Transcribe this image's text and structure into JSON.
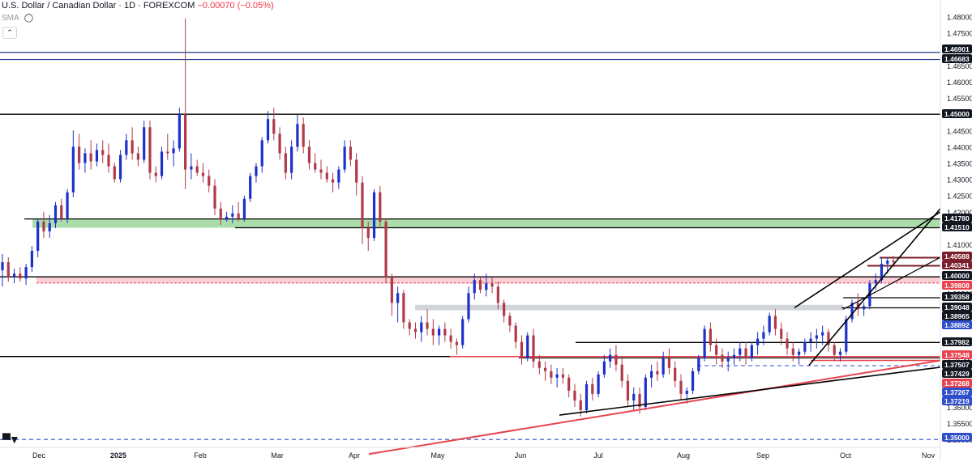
{
  "header": {
    "symbol_title": "U.S. Dollar / Canadian Dollar · 1D · FOREXCOM",
    "change": "−0.00070 (−0.05%)",
    "indicator": "SMA",
    "collapse_icon": "chevron-up-icon",
    "visibility_icon": "eye-slash-icon"
  },
  "watermark": {
    "logo": "TV"
  },
  "colors": {
    "up": "#1c31c9",
    "down": "#b03a49",
    "support_zone": "#8fd18f",
    "parity_zone": "#f7c2c9",
    "grey_zone": "#c9ccd1",
    "trendline_red": "#e8434f",
    "hline_blue": "#1e3a8a",
    "label_dark": "#131722",
    "label_blue": "#2f4ec9",
    "label_red": "#e8434f",
    "label_maroon": "#7a1f2b"
  },
  "chart_data": {
    "type": "candlestick",
    "symbol": "USDCAD",
    "interval": "1D",
    "y_axis_ticks": [
      "1.48000",
      "1.47500",
      "1.47000",
      "1.46500",
      "1.46000",
      "1.45500",
      "1.45000",
      "1.44500",
      "1.44000",
      "1.43500",
      "1.43000",
      "1.42500",
      "1.42000",
      "1.41500",
      "1.41000",
      "1.40500",
      "1.40000",
      "1.39500",
      "1.39000",
      "1.38500",
      "1.38000",
      "1.37500",
      "1.37000",
      "1.36500",
      "1.36000",
      "1.35500",
      "1.35000"
    ],
    "ylim": [
      1.3443,
      1.4822
    ],
    "x_axis_labels": [
      "Dec",
      "2025",
      "Feb",
      "Mar",
      "Apr",
      "May",
      "Jun",
      "Jul",
      "Aug",
      "Sep",
      "Oct",
      "Nov"
    ],
    "price_labels": [
      {
        "text": "1.46901",
        "style": "dark"
      },
      {
        "text": "1.46683",
        "style": "dark"
      },
      {
        "text": "1.45000",
        "style": "dark"
      },
      {
        "text": "1.41780",
        "style": "dark"
      },
      {
        "text": "1.41510",
        "style": "dark"
      },
      {
        "text": "1.40588",
        "style": "maroon"
      },
      {
        "text": "1.40341",
        "style": "maroon"
      },
      {
        "text": "1.40000",
        "style": "dark"
      },
      {
        "text": "1.39808",
        "style": "red"
      },
      {
        "text": "1.39358",
        "style": "dark"
      },
      {
        "text": "1.39048",
        "style": "dark"
      },
      {
        "text": "1.38965",
        "style": "dark"
      },
      {
        "text": "1.38892",
        "style": "blue"
      },
      {
        "text": "1.37982",
        "style": "dark"
      },
      {
        "text": "1.37548",
        "style": "red"
      },
      {
        "text": "1.37507",
        "style": "dark"
      },
      {
        "text": "1.37429",
        "style": "dark"
      },
      {
        "text": "1.37268",
        "style": "red"
      },
      {
        "text": "1.37267",
        "style": "blue"
      },
      {
        "text": "1.37219",
        "style": "blue"
      },
      {
        "text": "1.35000",
        "style": "blue"
      }
    ],
    "levels": {
      "blue_lines": [
        1.46901,
        1.46683
      ],
      "horizontal": [
        1.45,
        1.4,
        1.3755
      ],
      "dashed": [
        1.35
      ],
      "zones": [
        {
          "name": "support",
          "from": 1.4151,
          "to": 1.4178
        },
        {
          "name": "parity",
          "from": 1.3981,
          "to": 1.4
        },
        {
          "name": "grey",
          "from": 1.3897,
          "to": 1.3914
        }
      ]
    },
    "series": [
      {
        "name": "daily",
        "ohlc": [
          [
            1.402,
            1.407,
            1.397,
            1.4045
          ],
          [
            1.4045,
            1.406,
            1.3985,
            1.4
          ],
          [
            1.4,
            1.4025,
            1.398,
            1.401
          ],
          [
            1.401,
            1.403,
            1.3985,
            1.3995
          ],
          [
            1.3995,
            1.404,
            1.3975,
            1.403
          ],
          [
            1.403,
            1.4095,
            1.4015,
            1.408
          ],
          [
            1.408,
            1.418,
            1.406,
            1.417
          ],
          [
            1.417,
            1.42,
            1.412,
            1.414
          ],
          [
            1.414,
            1.419,
            1.412,
            1.4165
          ],
          [
            1.4165,
            1.423,
            1.415,
            1.422
          ],
          [
            1.422,
            1.424,
            1.417,
            1.418
          ],
          [
            1.418,
            1.427,
            1.4165,
            1.426
          ],
          [
            1.426,
            1.445,
            1.4245,
            1.44
          ],
          [
            1.44,
            1.444,
            1.433,
            1.435
          ],
          [
            1.435,
            1.4395,
            1.432,
            1.438
          ],
          [
            1.438,
            1.442,
            1.433,
            1.4355
          ],
          [
            1.4355,
            1.441,
            1.434,
            1.439
          ],
          [
            1.439,
            1.442,
            1.435,
            1.4375
          ],
          [
            1.4375,
            1.441,
            1.432,
            1.434
          ],
          [
            1.434,
            1.435,
            1.429,
            1.43
          ],
          [
            1.43,
            1.439,
            1.429,
            1.4375
          ],
          [
            1.4375,
            1.444,
            1.436,
            1.442
          ],
          [
            1.442,
            1.446,
            1.436,
            1.438
          ],
          [
            1.438,
            1.44,
            1.434,
            1.436
          ],
          [
            1.436,
            1.448,
            1.435,
            1.446
          ],
          [
            1.446,
            1.448,
            1.43,
            1.432
          ],
          [
            1.432,
            1.434,
            1.429,
            1.431
          ],
          [
            1.431,
            1.44,
            1.43,
            1.4385
          ],
          [
            1.4385,
            1.444,
            1.436,
            1.438
          ],
          [
            1.438,
            1.442,
            1.434,
            1.4395
          ],
          [
            1.4395,
            1.452,
            1.4385,
            1.45
          ],
          [
            1.45,
            1.4795,
            1.427,
            1.433
          ],
          [
            1.433,
            1.438,
            1.43,
            1.434
          ],
          [
            1.434,
            1.436,
            1.431,
            1.432
          ],
          [
            1.432,
            1.435,
            1.429,
            1.431
          ],
          [
            1.431,
            1.433,
            1.426,
            1.428
          ],
          [
            1.428,
            1.43,
            1.419,
            1.421
          ],
          [
            1.421,
            1.423,
            1.416,
            1.4175
          ],
          [
            1.4175,
            1.42,
            1.417,
            1.4185
          ],
          [
            1.4185,
            1.422,
            1.4165,
            1.4195
          ],
          [
            1.4195,
            1.423,
            1.417,
            1.418
          ],
          [
            1.418,
            1.425,
            1.417,
            1.424
          ],
          [
            1.424,
            1.432,
            1.423,
            1.431
          ],
          [
            1.431,
            1.435,
            1.429,
            1.434
          ],
          [
            1.434,
            1.443,
            1.432,
            1.442
          ],
          [
            1.442,
            1.451,
            1.441,
            1.4485
          ],
          [
            1.4485,
            1.452,
            1.442,
            1.444
          ],
          [
            1.444,
            1.446,
            1.436,
            1.438
          ],
          [
            1.438,
            1.44,
            1.43,
            1.432
          ],
          [
            1.432,
            1.442,
            1.43,
            1.44
          ],
          [
            1.44,
            1.45,
            1.4385,
            1.447
          ],
          [
            1.447,
            1.449,
            1.438,
            1.44
          ],
          [
            1.44,
            1.442,
            1.433,
            1.435
          ],
          [
            1.435,
            1.438,
            1.432,
            1.433
          ],
          [
            1.433,
            1.436,
            1.43,
            1.432
          ],
          [
            1.432,
            1.434,
            1.429,
            1.43
          ],
          [
            1.43,
            1.432,
            1.426,
            1.429
          ],
          [
            1.429,
            1.434,
            1.427,
            1.433
          ],
          [
            1.433,
            1.442,
            1.432,
            1.44
          ],
          [
            1.44,
            1.442,
            1.434,
            1.436
          ],
          [
            1.436,
            1.438,
            1.425,
            1.429
          ],
          [
            1.429,
            1.431,
            1.41,
            1.415
          ],
          [
            1.415,
            1.417,
            1.408,
            1.412
          ],
          [
            1.412,
            1.427,
            1.411,
            1.426
          ],
          [
            1.426,
            1.428,
            1.415,
            1.417
          ],
          [
            1.417,
            1.418,
            1.398,
            1.4
          ],
          [
            1.4,
            1.401,
            1.388,
            1.392
          ],
          [
            1.392,
            1.397,
            1.386,
            1.395
          ],
          [
            1.395,
            1.396,
            1.384,
            1.386
          ],
          [
            1.386,
            1.387,
            1.382,
            1.384
          ],
          [
            1.384,
            1.386,
            1.381,
            1.383
          ],
          [
            1.383,
            1.388,
            1.38,
            1.386
          ],
          [
            1.386,
            1.39,
            1.382,
            1.384
          ],
          [
            1.384,
            1.387,
            1.379,
            1.382
          ],
          [
            1.382,
            1.385,
            1.379,
            1.384
          ],
          [
            1.384,
            1.386,
            1.38,
            1.382
          ],
          [
            1.382,
            1.384,
            1.378,
            1.38
          ],
          [
            1.38,
            1.381,
            1.376,
            1.379
          ],
          [
            1.379,
            1.388,
            1.378,
            1.387
          ],
          [
            1.387,
            1.397,
            1.386,
            1.395
          ],
          [
            1.395,
            1.401,
            1.393,
            1.399
          ],
          [
            1.399,
            1.4,
            1.395,
            1.396
          ],
          [
            1.396,
            1.401,
            1.394,
            1.398
          ],
          [
            1.398,
            1.4,
            1.395,
            1.397
          ],
          [
            1.397,
            1.3985,
            1.39,
            1.392
          ],
          [
            1.392,
            1.393,
            1.386,
            1.388
          ],
          [
            1.388,
            1.389,
            1.383,
            1.385
          ],
          [
            1.385,
            1.386,
            1.378,
            1.38
          ],
          [
            1.38,
            1.382,
            1.373,
            1.375
          ],
          [
            1.375,
            1.383,
            1.374,
            1.382
          ],
          [
            1.382,
            1.384,
            1.372,
            1.374
          ],
          [
            1.374,
            1.376,
            1.37,
            1.372
          ],
          [
            1.372,
            1.374,
            1.368,
            1.371
          ],
          [
            1.371,
            1.373,
            1.367,
            1.369
          ],
          [
            1.369,
            1.372,
            1.366,
            1.37
          ],
          [
            1.37,
            1.372,
            1.367,
            1.369
          ],
          [
            1.369,
            1.37,
            1.363,
            1.365
          ],
          [
            1.365,
            1.367,
            1.36,
            1.362
          ],
          [
            1.362,
            1.364,
            1.357,
            1.359
          ],
          [
            1.359,
            1.368,
            1.358,
            1.367
          ],
          [
            1.367,
            1.369,
            1.362,
            1.364
          ],
          [
            1.364,
            1.371,
            1.363,
            1.37
          ],
          [
            1.37,
            1.376,
            1.369,
            1.374
          ],
          [
            1.374,
            1.378,
            1.372,
            1.376
          ],
          [
            1.376,
            1.379,
            1.371,
            1.373
          ],
          [
            1.373,
            1.375,
            1.366,
            1.368
          ],
          [
            1.368,
            1.37,
            1.36,
            1.362
          ],
          [
            1.362,
            1.366,
            1.359,
            1.364
          ],
          [
            1.364,
            1.366,
            1.358,
            1.36
          ],
          [
            1.36,
            1.37,
            1.359,
            1.369
          ],
          [
            1.369,
            1.373,
            1.366,
            1.371
          ],
          [
            1.371,
            1.374,
            1.368,
            1.37
          ],
          [
            1.37,
            1.377,
            1.369,
            1.375
          ],
          [
            1.375,
            1.378,
            1.37,
            1.372
          ],
          [
            1.372,
            1.374,
            1.366,
            1.368
          ],
          [
            1.368,
            1.37,
            1.362,
            1.364
          ],
          [
            1.364,
            1.366,
            1.361,
            1.365
          ],
          [
            1.365,
            1.372,
            1.364,
            1.371
          ],
          [
            1.371,
            1.376,
            1.37,
            1.375
          ],
          [
            1.375,
            1.385,
            1.374,
            1.384
          ],
          [
            1.384,
            1.386,
            1.377,
            1.379
          ],
          [
            1.379,
            1.381,
            1.373,
            1.376
          ],
          [
            1.376,
            1.378,
            1.372,
            1.374
          ],
          [
            1.374,
            1.377,
            1.371,
            1.375
          ],
          [
            1.375,
            1.378,
            1.373,
            1.376
          ],
          [
            1.376,
            1.38,
            1.374,
            1.378
          ],
          [
            1.378,
            1.38,
            1.373,
            1.375
          ],
          [
            1.375,
            1.38,
            1.374,
            1.379
          ],
          [
            1.379,
            1.383,
            1.376,
            1.381
          ],
          [
            1.381,
            1.385,
            1.379,
            1.383
          ],
          [
            1.383,
            1.389,
            1.382,
            1.388
          ],
          [
            1.388,
            1.39,
            1.382,
            1.384
          ],
          [
            1.384,
            1.386,
            1.379,
            1.381
          ],
          [
            1.381,
            1.383,
            1.376,
            1.378
          ],
          [
            1.378,
            1.38,
            1.374,
            1.376
          ],
          [
            1.376,
            1.378,
            1.373,
            1.377
          ],
          [
            1.377,
            1.381,
            1.376,
            1.38
          ],
          [
            1.38,
            1.383,
            1.377,
            1.381
          ],
          [
            1.381,
            1.384,
            1.378,
            1.382
          ],
          [
            1.382,
            1.385,
            1.379,
            1.383
          ],
          [
            1.383,
            1.384,
            1.377,
            1.379
          ],
          [
            1.379,
            1.38,
            1.374,
            1.376
          ],
          [
            1.376,
            1.378,
            1.374,
            1.377
          ],
          [
            1.377,
            1.388,
            1.376,
            1.387
          ],
          [
            1.387,
            1.393,
            1.386,
            1.392
          ],
          [
            1.392,
            1.395,
            1.388,
            1.39
          ],
          [
            1.39,
            1.392,
            1.388,
            1.391
          ],
          [
            1.391,
            1.399,
            1.39,
            1.398
          ],
          [
            1.398,
            1.401,
            1.396,
            1.399
          ],
          [
            1.399,
            1.406,
            1.398,
            1.404
          ],
          [
            1.404,
            1.406,
            1.401,
            1.405
          ],
          [
            1.405,
            1.4065,
            1.403,
            1.4045
          ]
        ]
      }
    ]
  }
}
